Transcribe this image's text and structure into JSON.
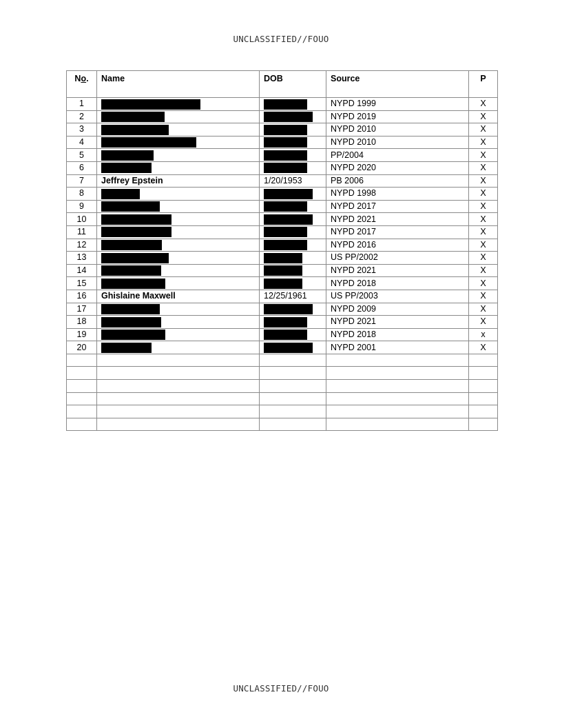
{
  "marking": "UNCLASSIFIED//FOUO",
  "headers": {
    "no_prefix": "N",
    "no_under": "o",
    "no_suffix": ".",
    "name": "Name",
    "dob": "DOB",
    "source": "Source",
    "p": "P"
  },
  "rows": [
    {
      "no": "1",
      "name": null,
      "dob": null,
      "source": "NYPD 1999",
      "p": "X"
    },
    {
      "no": "2",
      "name": null,
      "dob": null,
      "source": "NYPD 2019",
      "p": "X"
    },
    {
      "no": "3",
      "name": null,
      "dob": null,
      "source": "NYPD 2010",
      "p": "X"
    },
    {
      "no": "4",
      "name": null,
      "dob": null,
      "source": "NYPD 2010",
      "p": "X"
    },
    {
      "no": "5",
      "name": null,
      "dob": null,
      "source": "PP/2004",
      "p": "X"
    },
    {
      "no": "6",
      "name": null,
      "dob": null,
      "source": "NYPD 2020",
      "p": "X"
    },
    {
      "no": "7",
      "name": "Jeffrey Epstein",
      "dob": "1/20/1953",
      "source": "PB 2006",
      "p": "X"
    },
    {
      "no": "8",
      "name": null,
      "dob": null,
      "source": "NYPD 1998",
      "p": "X"
    },
    {
      "no": "9",
      "name": null,
      "dob": null,
      "source": "NYPD 2017",
      "p": "X"
    },
    {
      "no": "10",
      "name": null,
      "dob": null,
      "source": "NYPD 2021",
      "p": "X"
    },
    {
      "no": "11",
      "name": null,
      "dob": null,
      "source": "NYPD 2017",
      "p": "X"
    },
    {
      "no": "12",
      "name": null,
      "dob": null,
      "source": "NYPD 2016",
      "p": "X"
    },
    {
      "no": "13",
      "name": null,
      "dob": null,
      "source": "US PP/2002",
      "p": "X"
    },
    {
      "no": "14",
      "name": null,
      "dob": null,
      "source": "NYPD 2021",
      "p": "X"
    },
    {
      "no": "15",
      "name": null,
      "dob": null,
      "source": "NYPD 2018",
      "p": "X"
    },
    {
      "no": "16",
      "name": "Ghislaine Maxwell",
      "dob": "12/25/1961",
      "source": "US PP/2003",
      "p": "X"
    },
    {
      "no": "17",
      "name": null,
      "dob": null,
      "source": "NYPD 2009",
      "p": "X"
    },
    {
      "no": "18",
      "name": null,
      "dob": null,
      "source": "NYPD 2021",
      "p": "X"
    },
    {
      "no": "19",
      "name": null,
      "dob": null,
      "source": "NYPD 2018",
      "p": "x"
    },
    {
      "no": "20",
      "name": null,
      "dob": null,
      "source": "NYPD 2001",
      "p": "X"
    }
  ],
  "empty_rows": 6
}
